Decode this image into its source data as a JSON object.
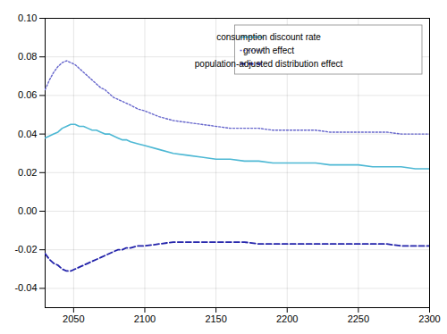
{
  "chart_data": {
    "type": "line",
    "x": [
      2030,
      2033,
      2036,
      2039,
      2042,
      2045,
      2048,
      2051,
      2054,
      2057,
      2060,
      2063,
      2066,
      2069,
      2072,
      2075,
      2078,
      2081,
      2084,
      2087,
      2090,
      2095,
      2100,
      2110,
      2120,
      2130,
      2140,
      2150,
      2160,
      2170,
      2180,
      2190,
      2200,
      2210,
      2220,
      2230,
      2240,
      2250,
      2260,
      2270,
      2280,
      2290,
      2300
    ],
    "series": [
      {
        "name": "consumption discount rate",
        "color": "#4db8d4",
        "line_style": "solid",
        "values": [
          0.038,
          0.039,
          0.04,
          0.041,
          0.043,
          0.044,
          0.045,
          0.045,
          0.044,
          0.044,
          0.043,
          0.042,
          0.042,
          0.041,
          0.04,
          0.04,
          0.039,
          0.038,
          0.037,
          0.037,
          0.036,
          0.035,
          0.034,
          0.032,
          0.03,
          0.029,
          0.028,
          0.027,
          0.027,
          0.026,
          0.026,
          0.025,
          0.025,
          0.025,
          0.025,
          0.024,
          0.024,
          0.024,
          0.023,
          0.023,
          0.023,
          0.022,
          0.022
        ]
      },
      {
        "name": "growth effect",
        "color": "#6666cc",
        "line_style": "dotted",
        "values": [
          0.063,
          0.068,
          0.072,
          0.075,
          0.077,
          0.078,
          0.077,
          0.076,
          0.074,
          0.072,
          0.07,
          0.068,
          0.066,
          0.064,
          0.063,
          0.061,
          0.059,
          0.058,
          0.057,
          0.056,
          0.055,
          0.053,
          0.052,
          0.049,
          0.047,
          0.046,
          0.045,
          0.044,
          0.043,
          0.043,
          0.043,
          0.042,
          0.042,
          0.042,
          0.042,
          0.041,
          0.041,
          0.041,
          0.041,
          0.041,
          0.04,
          0.04,
          0.04
        ]
      },
      {
        "name": "population-adjusted distribution effect",
        "color": "#2222aa",
        "line_style": "dashed",
        "values": [
          -0.022,
          -0.025,
          -0.027,
          -0.028,
          -0.03,
          -0.031,
          -0.031,
          -0.03,
          -0.029,
          -0.028,
          -0.027,
          -0.026,
          -0.025,
          -0.024,
          -0.023,
          -0.022,
          -0.021,
          -0.02,
          -0.02,
          -0.019,
          -0.019,
          -0.018,
          -0.018,
          -0.017,
          -0.016,
          -0.016,
          -0.016,
          -0.016,
          -0.016,
          -0.016,
          -0.017,
          -0.017,
          -0.017,
          -0.017,
          -0.017,
          -0.017,
          -0.017,
          -0.017,
          -0.017,
          -0.017,
          -0.018,
          -0.018,
          -0.018
        ]
      }
    ],
    "xlim": [
      2030,
      2300
    ],
    "ylim": [
      -0.05,
      0.1
    ],
    "xticks": [
      2050,
      2100,
      2150,
      2200,
      2250,
      2300
    ],
    "yticks": [
      -0.04,
      -0.02,
      {
        "value": 0,
        "label": "0.00"
      },
      0.02,
      0.04,
      0.06,
      0.08,
      {
        "value": 0.1,
        "label": "0.10"
      }
    ],
    "grid": true,
    "legend": "upper right"
  }
}
